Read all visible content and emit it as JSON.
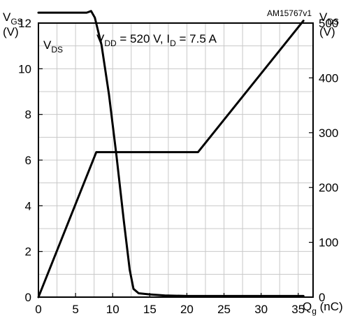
{
  "chart_data": {
    "type": "line",
    "figure_code": "AM15767v1",
    "condition": {
      "vdd_label": "V",
      "vdd_sub": "DD",
      "vdd_value": " = 520 V, I",
      "id_sub": "D",
      "id_value": " = 7.5 A"
    },
    "xaxis": {
      "label": "Q",
      "label_sub": "g",
      "label_unit": " (nC)",
      "range": [
        0,
        37
      ],
      "ticks": [
        0,
        5,
        10,
        15,
        20,
        25,
        30,
        35
      ]
    },
    "yaxis_left": {
      "label": "V",
      "label_sub": "GS",
      "unit": "(V)",
      "range": [
        0,
        12
      ],
      "ticks": [
        0,
        2,
        4,
        6,
        8,
        10,
        12
      ]
    },
    "yaxis_right": {
      "label": "V",
      "label_sub": "DS",
      "unit": "(V)",
      "range": [
        0,
        500
      ],
      "ticks": [
        0,
        100,
        200,
        300,
        400,
        500
      ]
    },
    "grid": true,
    "series": [
      {
        "name": "V",
        "name_sub": "DS",
        "axis": "right",
        "points": [
          [
            0,
            519
          ],
          [
            6.5,
            519
          ],
          [
            7.1,
            522
          ],
          [
            7.6,
            510
          ],
          [
            8.5,
            460
          ],
          [
            9.5,
            370
          ],
          [
            10.5,
            260
          ],
          [
            11.5,
            140
          ],
          [
            12.3,
            50
          ],
          [
            12.8,
            15
          ],
          [
            13.5,
            7
          ],
          [
            15,
            5
          ],
          [
            17,
            3
          ],
          [
            20,
            2
          ],
          [
            25,
            2
          ],
          [
            30,
            2
          ],
          [
            35.7,
            2
          ]
        ]
      },
      {
        "name": "",
        "axis": "left",
        "points": [
          [
            0,
            0
          ],
          [
            7.8,
            6.35
          ],
          [
            21.5,
            6.35
          ],
          [
            35.7,
            12.1
          ]
        ]
      }
    ]
  }
}
